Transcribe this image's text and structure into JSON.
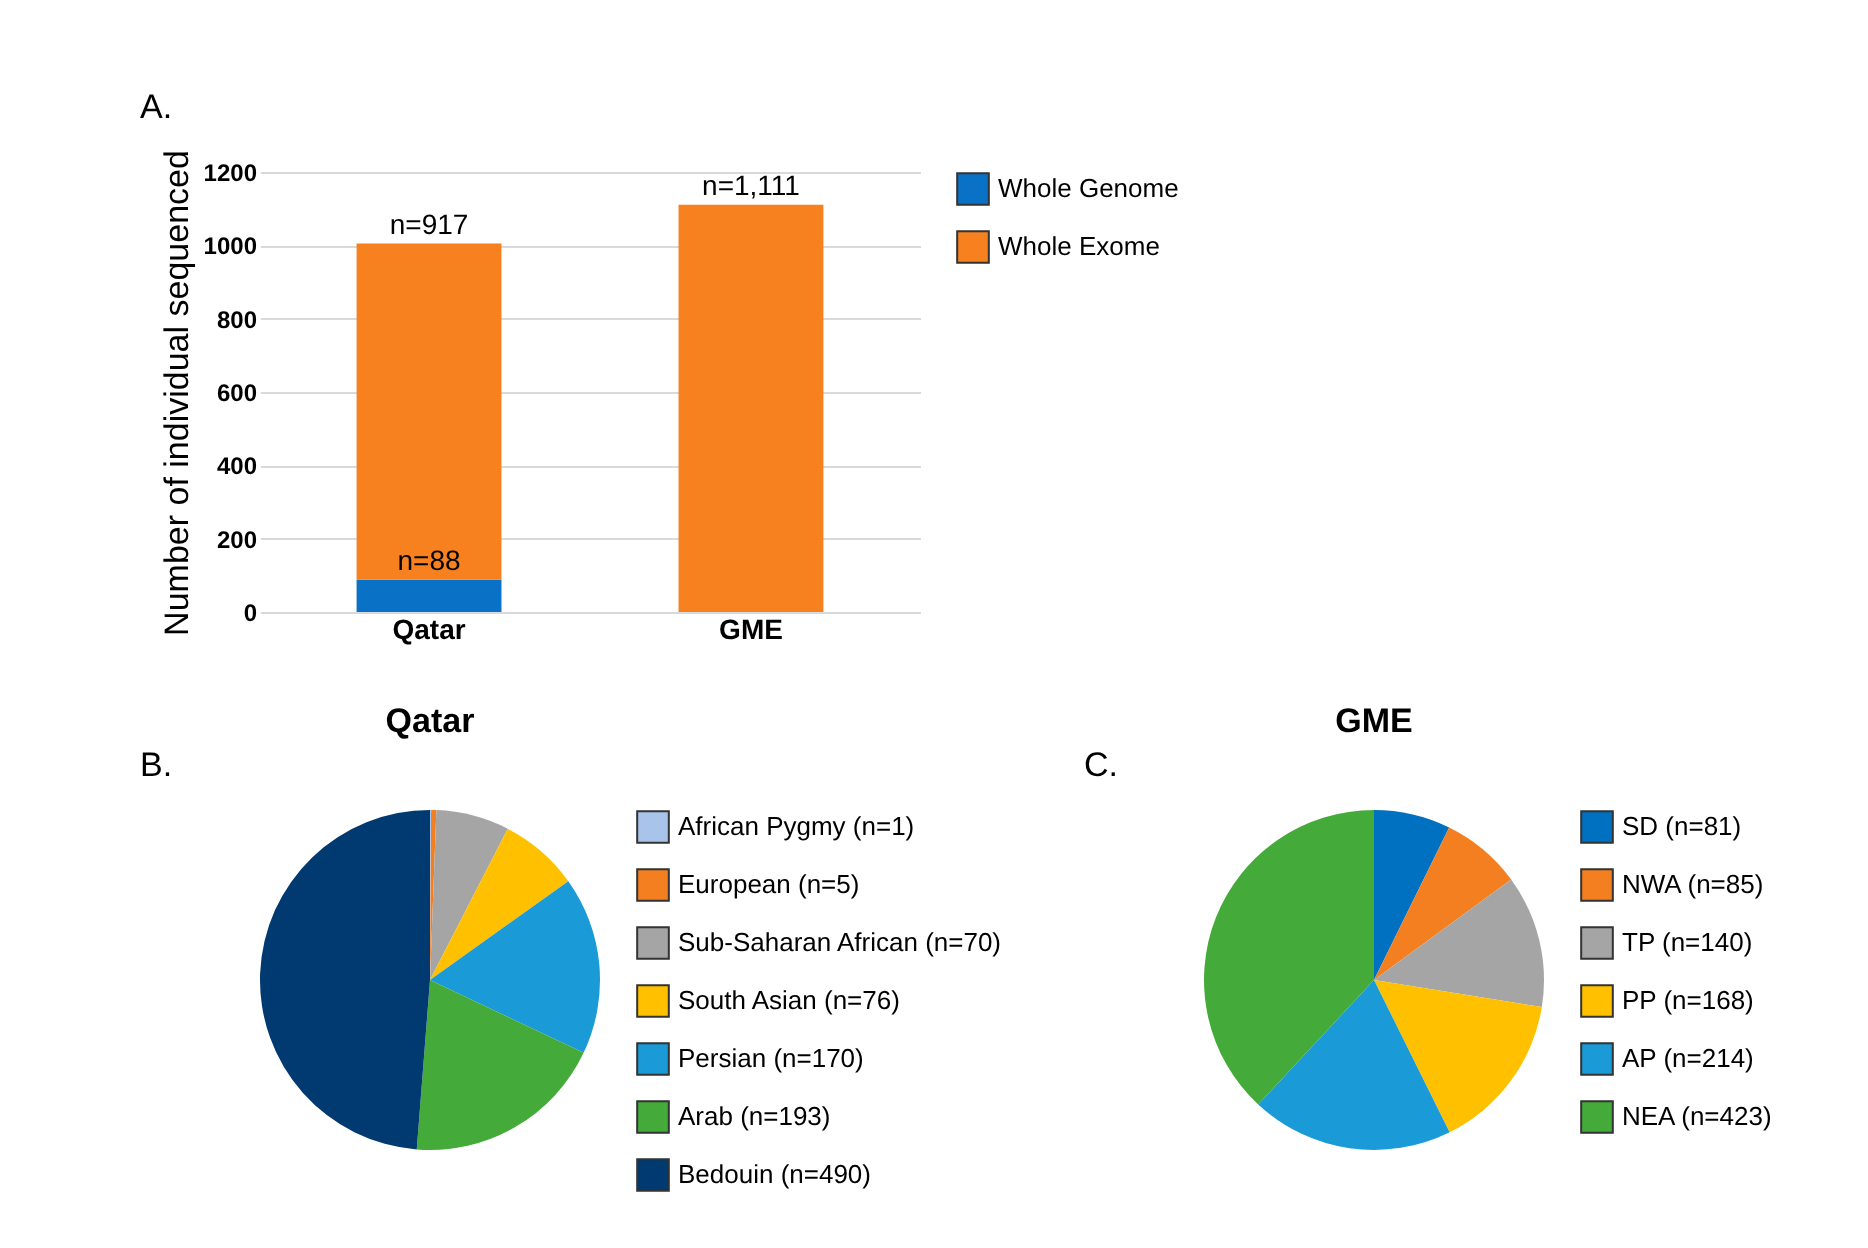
{
  "chart_data": [
    {
      "type": "bar",
      "annotations": [
        "A."
      ],
      "ylabel": "Number of individual sequenced",
      "categories": [
        "Qatar",
        "GME"
      ],
      "stacked": true,
      "ylim": [
        0,
        1200
      ],
      "yticks": [
        0,
        200,
        400,
        600,
        800,
        1000,
        1200
      ],
      "grid": "y",
      "legend": "right",
      "series": [
        {
          "name": "Whole Genome",
          "color": "#0a72c6",
          "values": [
            88,
            null
          ],
          "value_labels": [
            "n=88",
            null
          ]
        },
        {
          "name": "Whole Exome",
          "color": "#f7801f",
          "values": [
            917,
            1111
          ],
          "value_labels": [
            "n=917",
            "n=1,111"
          ]
        }
      ]
    },
    {
      "type": "pie",
      "title": "Qatar",
      "annotations": [
        "B."
      ],
      "legend": "right",
      "data_labels": false,
      "categories": [
        "African Pygmy (n=1)",
        "European (n=5)",
        "Sub-Saharan African (n=70)",
        "South Asian (n=76)",
        "Persian (n=170)",
        "Arab (n=193)",
        "Bedouin (n=490)"
      ],
      "values": [
        1,
        5,
        70,
        76,
        170,
        193,
        490
      ],
      "colors": [
        "#a9c4eb",
        "#f47f20",
        "#a5a5a5",
        "#ffc000",
        "#1a9ad6",
        "#44ab3a",
        "#003a70"
      ]
    },
    {
      "type": "pie",
      "title": "GME",
      "annotations": [
        "C."
      ],
      "legend": "right",
      "categories": [
        "SD (n=81)",
        "NWA (n=85)",
        "TP (n=140)",
        "PP (n=168)",
        "AP (n=214)",
        "NEA (n=423)"
      ],
      "values": [
        81,
        85,
        140,
        168,
        214,
        423
      ],
      "colors": [
        "#0070c0",
        "#f47f20",
        "#a5a5a5",
        "#ffc000",
        "#1a9ad6",
        "#44ab3a"
      ]
    }
  ]
}
